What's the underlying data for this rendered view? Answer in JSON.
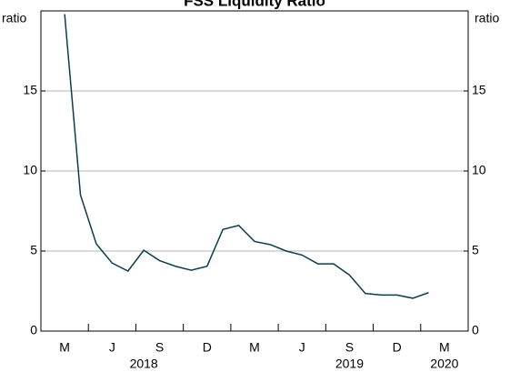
{
  "chart_data": {
    "type": "line",
    "title": "FSS Liquidity Ratio",
    "y_label": "ratio",
    "y2_label": "ratio",
    "x": [
      "2018-02",
      "2018-03",
      "2018-04",
      "2018-05",
      "2018-06",
      "2018-07",
      "2018-08",
      "2018-09",
      "2018-10",
      "2018-11",
      "2018-12",
      "2019-01",
      "2019-02",
      "2019-03",
      "2019-04",
      "2019-05",
      "2019-06",
      "2019-07",
      "2019-08",
      "2019-09",
      "2019-10",
      "2019-11",
      "2019-12",
      "2020-01"
    ],
    "series": [
      {
        "name": "FSS Liquidity Ratio",
        "color": "#0b3d4f",
        "values": [
          19.8,
          8.5,
          5.45,
          4.25,
          3.75,
          5.05,
          4.4,
          4.05,
          3.8,
          4.05,
          6.35,
          6.6,
          5.6,
          5.4,
          5.0,
          4.75,
          4.2,
          4.2,
          3.5,
          2.35,
          2.25,
          2.25,
          2.05,
          2.4
        ]
      }
    ],
    "xlim": [
      "2018-01",
      "2020-03"
    ],
    "xticks": [
      {
        "value": "2018-02",
        "label": "M"
      },
      {
        "value": "2018-05",
        "label": "J"
      },
      {
        "value": "2018-08",
        "label": "S"
      },
      {
        "value": "2018-11",
        "label": "D"
      },
      {
        "value": "2019-02",
        "label": "M"
      },
      {
        "value": "2019-05",
        "label": "J"
      },
      {
        "value": "2019-08",
        "label": "S"
      },
      {
        "value": "2019-11",
        "label": "D"
      },
      {
        "value": "2020-02",
        "label": "M"
      }
    ],
    "year_labels": [
      {
        "value": "2018-07",
        "label": "2018"
      },
      {
        "value": "2019-08",
        "label": "2019"
      },
      {
        "value": "2020-02",
        "label": "2020"
      }
    ],
    "ylim": [
      0,
      20
    ],
    "yticks": [
      0,
      5,
      10,
      15
    ],
    "y2lim": [
      0,
      20
    ],
    "y2ticks": [
      0,
      5,
      10,
      15
    ],
    "grid": true
  }
}
